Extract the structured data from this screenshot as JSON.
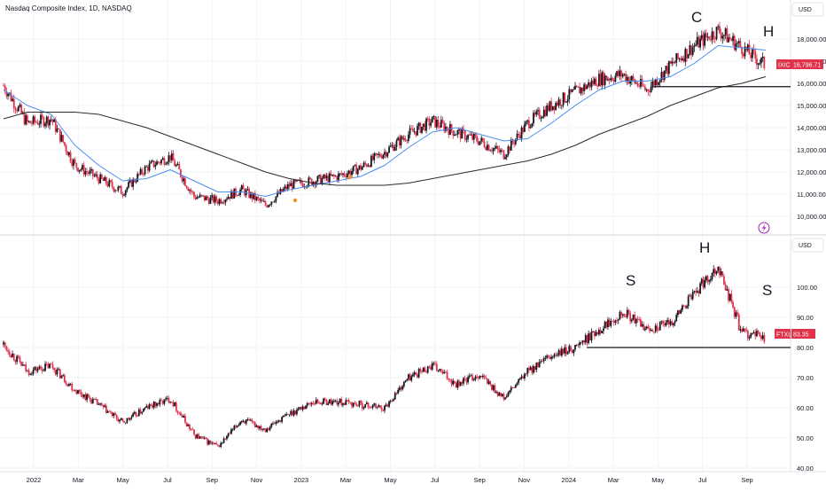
{
  "header": {
    "title": "Nasdaq Composite Index, 1D, NASDAQ",
    "currency_top": "USD",
    "currency_bottom": "USD"
  },
  "price_tags": {
    "ixic": {
      "symbol": "IXIC",
      "value": "16,796.71"
    },
    "ftxl": {
      "symbol": "FTXL",
      "value": "83.35"
    }
  },
  "annotations": {
    "top_left": "C",
    "top_right": "H",
    "bottom_left": "S",
    "bottom_mid": "H",
    "bottom_right": "S"
  },
  "x_axis": {
    "labels": [
      "2022",
      "Mar",
      "May",
      "Jul",
      "Sep",
      "Nov",
      "2023",
      "Mar",
      "May",
      "Jul",
      "Sep",
      "Nov",
      "2024",
      "Mar",
      "May",
      "Jul",
      "Sep"
    ]
  },
  "chart_data": [
    {
      "type": "line",
      "title": "Nasdaq Composite Index, 1D, NASDAQ",
      "x": [
        "2022-01",
        "2022-02",
        "2022-03",
        "2022-04",
        "2022-05",
        "2022-06",
        "2022-07",
        "2022-08",
        "2022-09",
        "2022-10",
        "2022-11",
        "2022-12",
        "2023-01",
        "2023-02",
        "2023-03",
        "2023-04",
        "2023-05",
        "2023-06",
        "2023-07",
        "2023-08",
        "2023-09",
        "2023-10",
        "2023-11",
        "2023-12",
        "2024-01",
        "2024-02",
        "2024-03",
        "2024-04",
        "2024-05",
        "2024-06",
        "2024-07",
        "2024-08",
        "2024-09"
      ],
      "series": [
        {
          "name": "IXIC",
          "values": [
            15900,
            14200,
            14400,
            12300,
            11700,
            11100,
            12200,
            12700,
            10900,
            10700,
            11200,
            10500,
            11400,
            11600,
            11800,
            12200,
            12900,
            13700,
            14300,
            13800,
            13400,
            12800,
            14200,
            15000,
            15600,
            16200,
            16400,
            15700,
            16800,
            17700,
            18400,
            17600,
            16796.71
          ]
        },
        {
          "values": [
            15700,
            15000,
            14600,
            13200,
            12300,
            11600,
            11700,
            12100,
            11600,
            11100,
            11100,
            10900,
            11200,
            11400,
            11600,
            11800,
            12300,
            13100,
            13800,
            14000,
            13700,
            13400,
            13500,
            14200,
            15000,
            15700,
            16100,
            16100,
            16300,
            16900,
            17700,
            17600,
            17500
          ]
        },
        {
          "values": [
            14400,
            14700,
            14700,
            14700,
            14600,
            14300,
            14000,
            13600,
            13200,
            12800,
            12400,
            12000,
            11700,
            11500,
            11400,
            11400,
            11400,
            11500,
            11700,
            11900,
            12100,
            12300,
            12500,
            12800,
            13200,
            13700,
            14100,
            14500,
            15000,
            15400,
            15800,
            16000,
            16300
          ]
        }
      ],
      "horizontal_line": 15850,
      "ylim": [
        9600,
        18800
      ],
      "y_ticks": [
        "10,000.00",
        "11,000.00",
        "12,000.00",
        "13,000.00",
        "14,000.00",
        "15,000.00",
        "16,000.00",
        "17,000.00",
        "18,000.00"
      ],
      "last_value": 16796.71
    },
    {
      "type": "line",
      "x": [
        "2022-01",
        "2022-02",
        "2022-03",
        "2022-04",
        "2022-05",
        "2022-06",
        "2022-07",
        "2022-08",
        "2022-09",
        "2022-10",
        "2022-11",
        "2022-12",
        "2023-01",
        "2023-02",
        "2023-03",
        "2023-04",
        "2023-05",
        "2023-06",
        "2023-07",
        "2023-08",
        "2023-09",
        "2023-10",
        "2023-11",
        "2023-12",
        "2024-01",
        "2024-02",
        "2024-03",
        "2024-04",
        "2024-05",
        "2024-06",
        "2024-07",
        "2024-08",
        "2024-09"
      ],
      "series": [
        {
          "name": "FTXL",
          "values": [
            81,
            72,
            74,
            66,
            61,
            55,
            60,
            63,
            51,
            47,
            56,
            53,
            58,
            62,
            62,
            61,
            60,
            70,
            74,
            68,
            71,
            63,
            72,
            77,
            80,
            86,
            92,
            86,
            88,
            98,
            107,
            85,
            83.35
          ]
        }
      ],
      "horizontal_line": 80,
      "ylim": [
        40,
        110
      ],
      "y_ticks": [
        "40.00",
        "50.00",
        "60.00",
        "70.00",
        "80.00",
        "90.00",
        "100.00"
      ],
      "last_value": 83.35
    }
  ],
  "colors": {
    "up": "#131722",
    "down": "#e0324a",
    "ma_fast": "#4a8ef0",
    "ma_slow": "#2b2b2b",
    "tag": "#e0324a",
    "grid": "#f0f3fa",
    "marker": "#f7931a",
    "flash": "#9c27b0"
  }
}
